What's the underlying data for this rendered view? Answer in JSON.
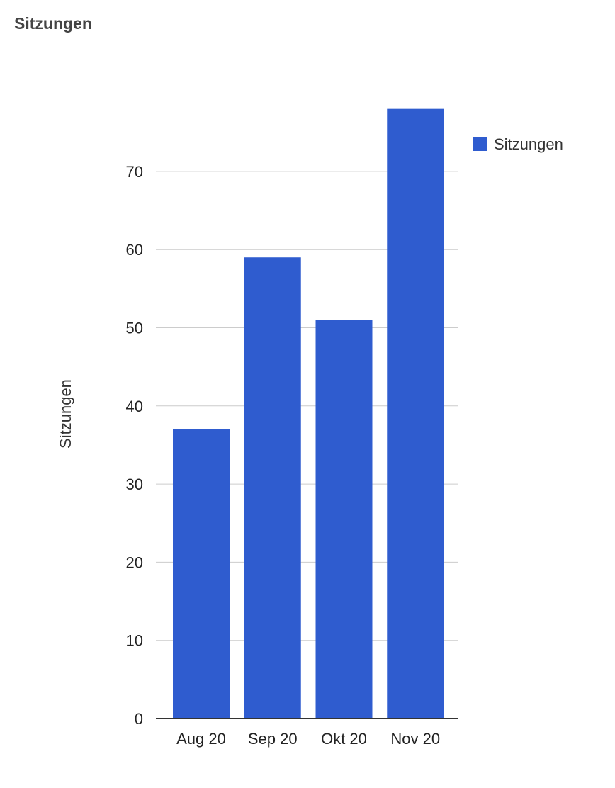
{
  "chart_data": {
    "type": "bar",
    "title": "Sitzungen",
    "xlabel": "",
    "ylabel": "Sitzungen",
    "categories": [
      "Aug 20",
      "Sep 20",
      "Okt 20",
      "Nov 20"
    ],
    "series": [
      {
        "name": "Sitzungen",
        "values": [
          37,
          59,
          51,
          78
        ]
      }
    ],
    "ylim": [
      0,
      80
    ],
    "yticks": [
      0,
      10,
      20,
      30,
      40,
      50,
      60,
      70
    ],
    "ytick_labels": [
      "0",
      "10",
      "20",
      "30",
      "40",
      "50",
      "60",
      "70"
    ],
    "grid": true,
    "legend_position": "right",
    "colors": {
      "bar": "#2f5ccf",
      "grid": "#cccccc",
      "axis": "#333333",
      "text": "#222222",
      "title": "#444444"
    }
  }
}
